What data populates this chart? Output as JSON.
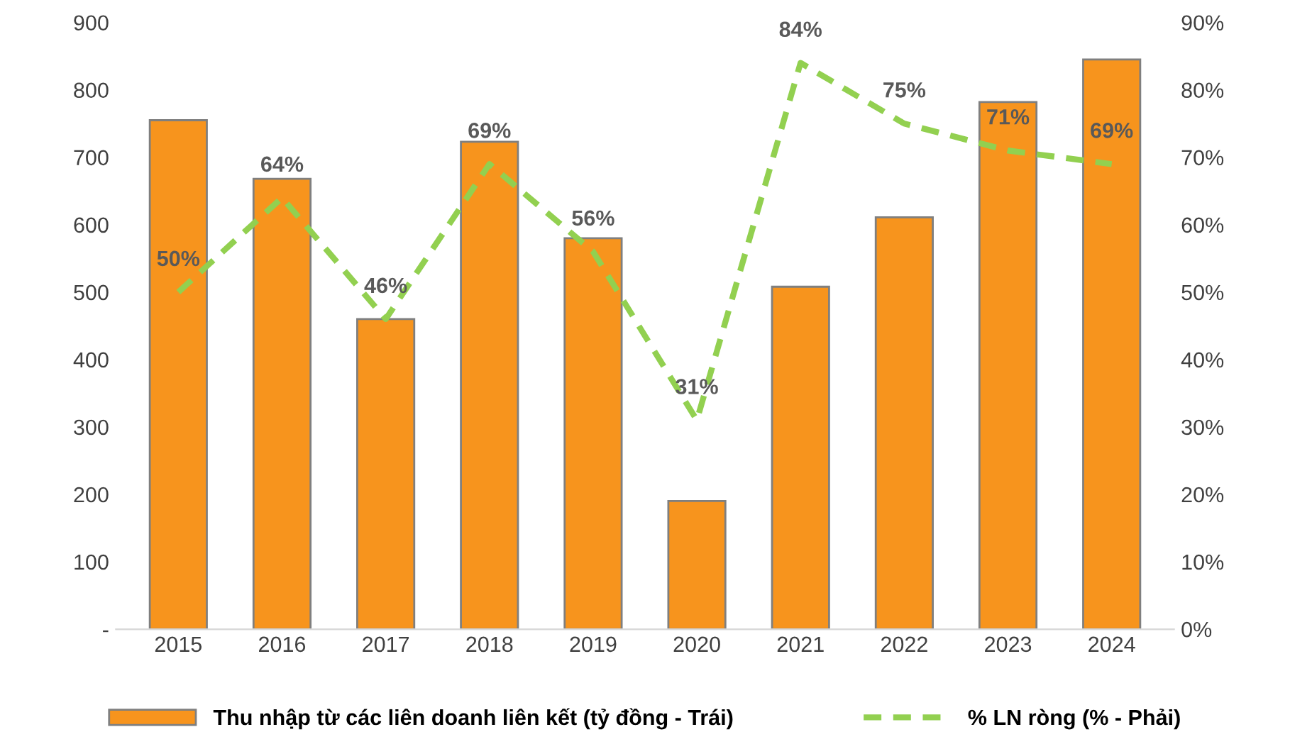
{
  "chart_data": {
    "type": "bar",
    "categories": [
      "2015",
      "2016",
      "2017",
      "2018",
      "2019",
      "2020",
      "2021",
      "2022",
      "2023",
      "2024"
    ],
    "series": [
      {
        "name": "Thu nhập từ các liên doanh liên kết (tỷ đồng - Trái)",
        "color": "#f7941d",
        "values": [
          755,
          668,
          460,
          723,
          580,
          190,
          508,
          611,
          782,
          845
        ]
      },
      {
        "name": "% LN ròng (% - Phải)",
        "type": "line",
        "axis": "y2",
        "color": "#92d050",
        "line_style": "dashed",
        "values": [
          50,
          64,
          46,
          69,
          56,
          31,
          84,
          75,
          71,
          69
        ],
        "value_labels": [
          "50%",
          "64%",
          "46%",
          "69%",
          "56%",
          "31%",
          "84%",
          "75%",
          "71%",
          "69%"
        ]
      }
    ],
    "ylim": [
      0,
      900
    ],
    "yticks": [
      {
        "value": 0,
        "label": "-"
      },
      100,
      200,
      300,
      400,
      500,
      600,
      700,
      800,
      900
    ],
    "y2lim": [
      0,
      90
    ],
    "y2ticks": [
      {
        "value": 0,
        "label": "0%"
      },
      {
        "value": 10,
        "label": "10%"
      },
      {
        "value": 20,
        "label": "20%"
      },
      {
        "value": 30,
        "label": "30%"
      },
      {
        "value": 40,
        "label": "40%"
      },
      {
        "value": 50,
        "label": "50%"
      },
      {
        "value": 60,
        "label": "60%"
      },
      {
        "value": 70,
        "label": "70%"
      },
      {
        "value": 80,
        "label": "80%"
      },
      {
        "value": 90,
        "label": "90%"
      }
    ],
    "grid": false,
    "legend": "bottom"
  }
}
